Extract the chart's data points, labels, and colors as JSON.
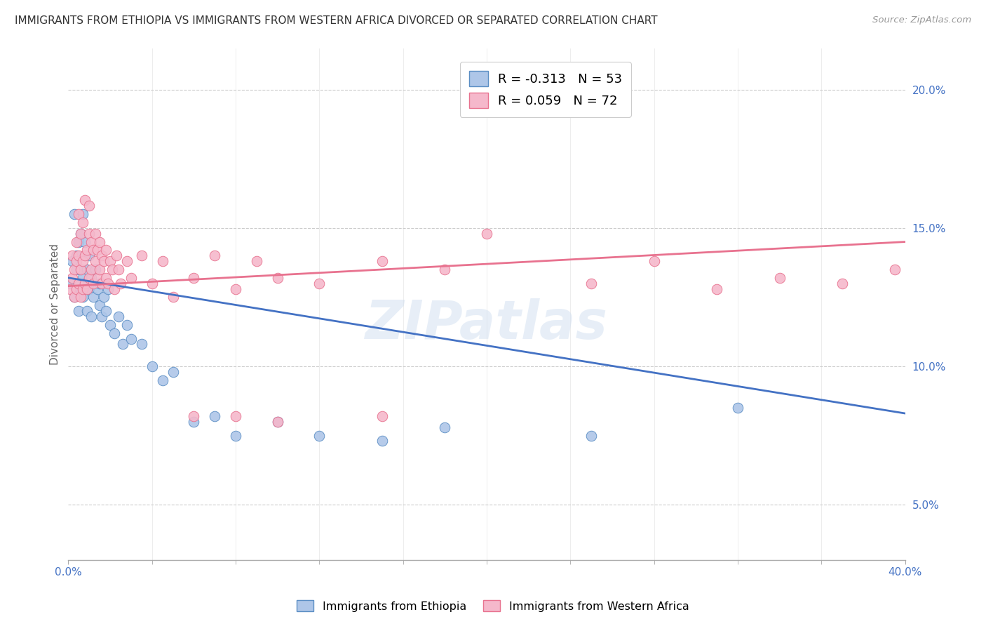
{
  "title": "IMMIGRANTS FROM ETHIOPIA VS IMMIGRANTS FROM WESTERN AFRICA DIVORCED OR SEPARATED CORRELATION CHART",
  "source": "Source: ZipAtlas.com",
  "ylabel": "Divorced or Separated",
  "xlim": [
    0.0,
    0.4
  ],
  "ylim": [
    0.03,
    0.215
  ],
  "blue_R": -0.313,
  "blue_N": 53,
  "pink_R": 0.059,
  "pink_N": 72,
  "blue_color": "#aec6e8",
  "pink_color": "#f5b8cb",
  "blue_edge_color": "#5b8ec4",
  "pink_edge_color": "#e8728f",
  "blue_line_color": "#4472c4",
  "pink_line_color": "#e8728f",
  "watermark": "ZIPatlas",
  "legend_label_blue": "Immigrants from Ethiopia",
  "legend_label_pink": "Immigrants from Western Africa",
  "blue_line_start_y": 0.132,
  "blue_line_end_y": 0.083,
  "pink_line_start_y": 0.129,
  "pink_line_end_y": 0.145,
  "blue_points_x": [
    0.001,
    0.002,
    0.003,
    0.003,
    0.004,
    0.004,
    0.004,
    0.005,
    0.005,
    0.005,
    0.006,
    0.006,
    0.006,
    0.007,
    0.007,
    0.007,
    0.008,
    0.008,
    0.009,
    0.009,
    0.01,
    0.01,
    0.011,
    0.011,
    0.012,
    0.012,
    0.013,
    0.014,
    0.015,
    0.015,
    0.016,
    0.017,
    0.018,
    0.019,
    0.02,
    0.022,
    0.024,
    0.026,
    0.028,
    0.03,
    0.035,
    0.04,
    0.045,
    0.05,
    0.06,
    0.07,
    0.08,
    0.1,
    0.12,
    0.15,
    0.18,
    0.25,
    0.32
  ],
  "blue_points_y": [
    0.13,
    0.138,
    0.125,
    0.155,
    0.128,
    0.135,
    0.14,
    0.13,
    0.12,
    0.145,
    0.135,
    0.128,
    0.148,
    0.125,
    0.132,
    0.155,
    0.13,
    0.145,
    0.12,
    0.135,
    0.128,
    0.14,
    0.132,
    0.118,
    0.13,
    0.125,
    0.135,
    0.128,
    0.122,
    0.13,
    0.118,
    0.125,
    0.12,
    0.128,
    0.115,
    0.112,
    0.118,
    0.108,
    0.115,
    0.11,
    0.108,
    0.1,
    0.095,
    0.098,
    0.08,
    0.082,
    0.075,
    0.08,
    0.075,
    0.073,
    0.078,
    0.075,
    0.085
  ],
  "pink_points_x": [
    0.001,
    0.002,
    0.002,
    0.003,
    0.003,
    0.004,
    0.004,
    0.004,
    0.005,
    0.005,
    0.005,
    0.006,
    0.006,
    0.006,
    0.007,
    0.007,
    0.007,
    0.008,
    0.008,
    0.008,
    0.009,
    0.009,
    0.01,
    0.01,
    0.01,
    0.011,
    0.011,
    0.012,
    0.012,
    0.013,
    0.013,
    0.014,
    0.014,
    0.015,
    0.015,
    0.016,
    0.016,
    0.017,
    0.018,
    0.018,
    0.019,
    0.02,
    0.021,
    0.022,
    0.023,
    0.024,
    0.025,
    0.028,
    0.03,
    0.035,
    0.04,
    0.045,
    0.05,
    0.06,
    0.07,
    0.08,
    0.09,
    0.1,
    0.12,
    0.15,
    0.18,
    0.2,
    0.25,
    0.28,
    0.31,
    0.34,
    0.37,
    0.395,
    0.06,
    0.08,
    0.1,
    0.15
  ],
  "pink_points_y": [
    0.128,
    0.132,
    0.14,
    0.125,
    0.135,
    0.128,
    0.138,
    0.145,
    0.13,
    0.14,
    0.155,
    0.125,
    0.135,
    0.148,
    0.128,
    0.138,
    0.152,
    0.13,
    0.14,
    0.16,
    0.128,
    0.142,
    0.132,
    0.148,
    0.158,
    0.135,
    0.145,
    0.13,
    0.142,
    0.138,
    0.148,
    0.132,
    0.142,
    0.135,
    0.145,
    0.13,
    0.14,
    0.138,
    0.132,
    0.142,
    0.13,
    0.138,
    0.135,
    0.128,
    0.14,
    0.135,
    0.13,
    0.138,
    0.132,
    0.14,
    0.13,
    0.138,
    0.125,
    0.132,
    0.14,
    0.128,
    0.138,
    0.132,
    0.13,
    0.138,
    0.135,
    0.148,
    0.13,
    0.138,
    0.128,
    0.132,
    0.13,
    0.135,
    0.082,
    0.082,
    0.08,
    0.082
  ]
}
